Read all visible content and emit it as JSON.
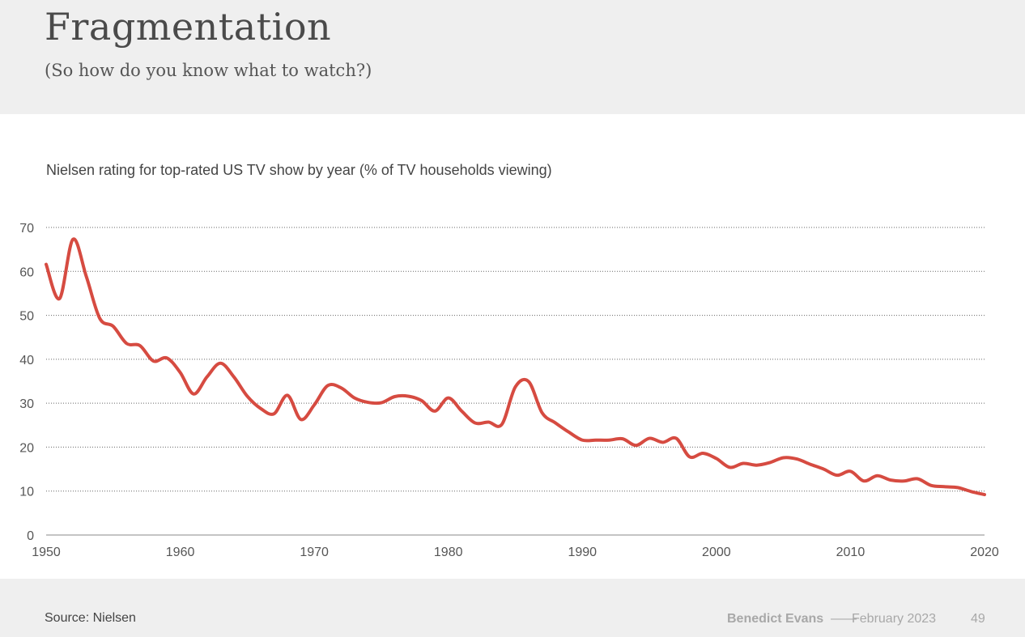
{
  "slide": {
    "title": "Fragmentation",
    "subtitle": "(So how do you know what to watch?)",
    "source": "Source: Nielsen",
    "author": "Benedict Evans",
    "separator": "——",
    "date": "February 2023",
    "page_number": "49"
  },
  "chart_data": {
    "type": "line",
    "title": "Nielsen rating for top-rated US TV show by year (% of TV households viewing)",
    "xlabel": "",
    "ylabel": "",
    "xlim": [
      1950,
      2020
    ],
    "ylim": [
      0,
      70
    ],
    "x_ticks": [
      1950,
      1960,
      1970,
      1980,
      1990,
      2000,
      2010,
      2020
    ],
    "y_ticks": [
      0,
      10,
      20,
      30,
      40,
      50,
      60,
      70
    ],
    "grid": "horizontal-dotted",
    "color": "#d64b41",
    "series": [
      {
        "x": [
          1950,
          1951,
          1952,
          1953,
          1954,
          1955,
          1956,
          1957,
          1958,
          1959,
          1960,
          1961,
          1962,
          1963,
          1964,
          1965,
          1966,
          1967,
          1968,
          1969,
          1970,
          1971,
          1972,
          1973,
          1974,
          1975,
          1976,
          1977,
          1978,
          1979,
          1980,
          1981,
          1982,
          1983,
          1984,
          1985,
          1986,
          1987,
          1988,
          1989,
          1990,
          1991,
          1992,
          1993,
          1994,
          1995,
          1996,
          1997,
          1998,
          1999,
          2000,
          2001,
          2002,
          2003,
          2004,
          2005,
          2006,
          2007,
          2008,
          2009,
          2010,
          2011,
          2012,
          2013,
          2014,
          2015,
          2016,
          2017,
          2018,
          2019,
          2020
        ],
        "values": [
          61.6,
          53.8,
          67.3,
          58.8,
          49.3,
          47.5,
          43.6,
          43.1,
          39.6,
          40.3,
          37.0,
          32.1,
          36.0,
          39.1,
          36.0,
          31.6,
          28.8,
          27.6,
          31.8,
          26.3,
          29.6,
          34.0,
          33.5,
          31.2,
          30.2,
          30.1,
          31.5,
          31.6,
          30.6,
          28.2,
          31.2,
          28.2,
          25.5,
          25.7,
          25.2,
          33.7,
          34.9,
          27.8,
          25.5,
          23.4,
          21.6,
          21.6,
          21.6,
          21.9,
          20.4,
          22.0,
          21.1,
          22.0,
          17.8,
          18.6,
          17.4,
          15.4,
          16.3,
          15.9,
          16.5,
          17.6,
          17.3,
          16.1,
          15.0,
          13.6,
          14.5,
          12.3,
          13.5,
          12.5,
          12.3,
          12.8,
          11.3,
          11.0,
          10.8,
          9.9,
          9.2
        ]
      }
    ]
  }
}
